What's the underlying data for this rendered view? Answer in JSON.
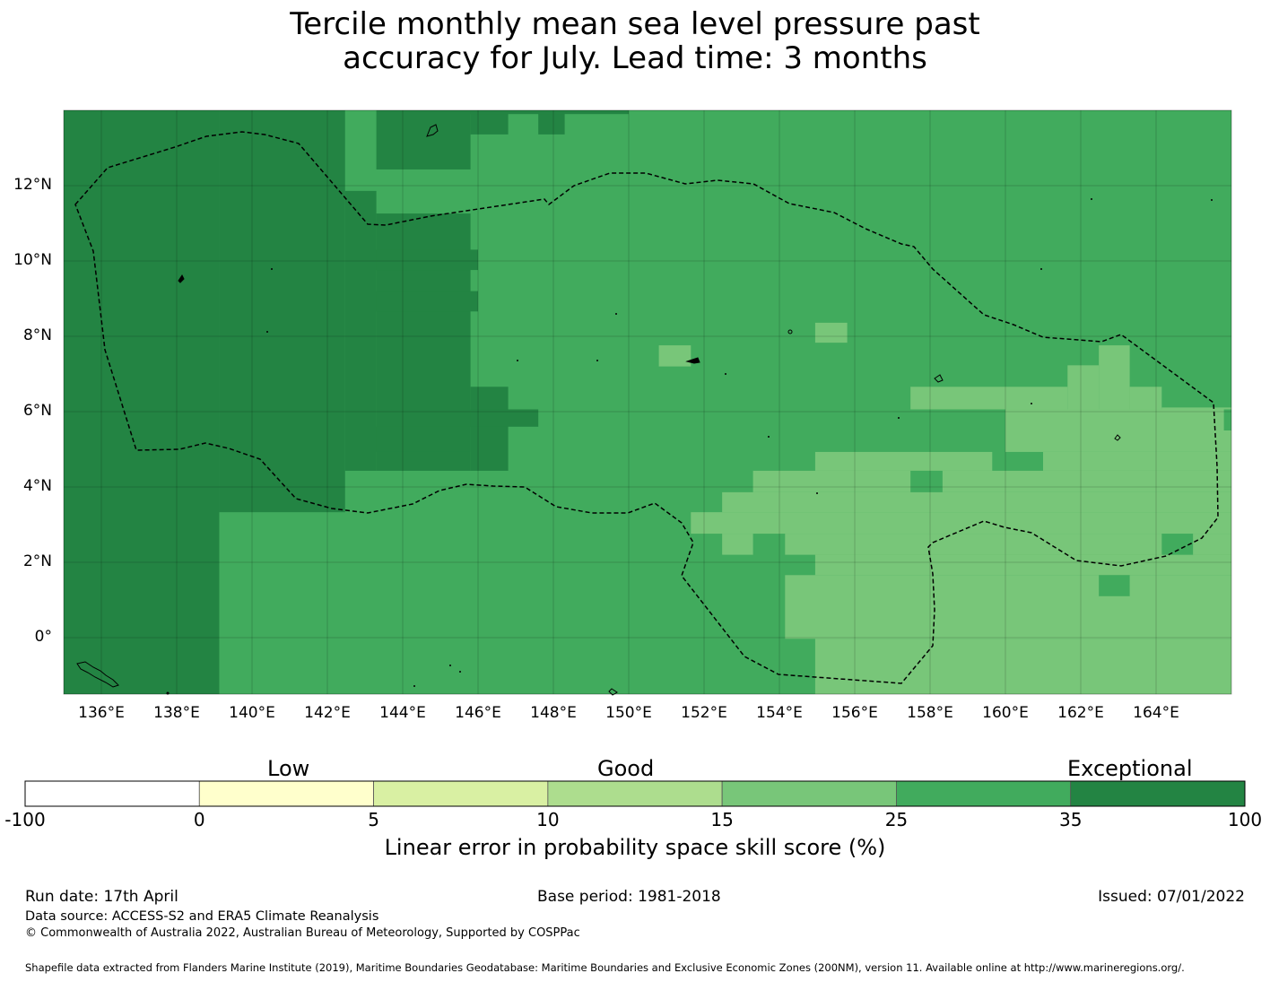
{
  "title_lines": [
    "Tercile monthly mean sea level pressure past",
    "accuracy for July. Lead time: 3 months"
  ],
  "map": {
    "lon_range": [
      135,
      166
    ],
    "lat_range": [
      -1.5,
      14
    ],
    "lat_ticks": [
      {
        "value": 12,
        "label": "12°N"
      },
      {
        "value": 10,
        "label": "10°N"
      },
      {
        "value": 8,
        "label": "8°N"
      },
      {
        "value": 6,
        "label": "6°N"
      },
      {
        "value": 4,
        "label": "4°N"
      },
      {
        "value": 2,
        "label": "2°N"
      },
      {
        "value": 0,
        "label": "0°"
      }
    ],
    "lon_ticks": [
      {
        "value": 136,
        "label": "136°E"
      },
      {
        "value": 138,
        "label": "138°E"
      },
      {
        "value": 140,
        "label": "140°E"
      },
      {
        "value": 142,
        "label": "142°E"
      },
      {
        "value": 144,
        "label": "144°E"
      },
      {
        "value": 146,
        "label": "146°E"
      },
      {
        "value": 148,
        "label": "148°E"
      },
      {
        "value": 150,
        "label": "150°E"
      },
      {
        "value": 152,
        "label": "152°E"
      },
      {
        "value": 154,
        "label": "154°E"
      },
      {
        "value": 156,
        "label": "156°E"
      },
      {
        "value": 158,
        "label": "158°E"
      },
      {
        "value": 160,
        "label": "160°E"
      },
      {
        "value": 162,
        "label": "162°E"
      },
      {
        "value": 164,
        "label": "164°E"
      }
    ],
    "score_regions": [
      {
        "class": "25-35",
        "lon": [
          135,
          166
        ],
        "lat": [
          -1.5,
          14
        ]
      },
      {
        "class": "35-100",
        "lon": [
          135,
          139.13
        ],
        "lat": [
          -1.5,
          14
        ]
      },
      {
        "class": "35-100",
        "lon": [
          139.13,
          142.47
        ],
        "lat": [
          3.33,
          14
        ]
      },
      {
        "class": "35-100",
        "lon": [
          142.47,
          143.3
        ],
        "lat": [
          4.43,
          11.86
        ]
      },
      {
        "class": "35-100",
        "lon": [
          143.3,
          145.8
        ],
        "lat": [
          4.43,
          11.26
        ]
      },
      {
        "class": "35-100",
        "lon": [
          145.8,
          146.8
        ],
        "lat": [
          4.43,
          6.66
        ]
      },
      {
        "class": "35-100",
        "lon": [
          145.8,
          147.6
        ],
        "lat": [
          5.6,
          6.06
        ]
      },
      {
        "class": "35-100",
        "lon": [
          143.3,
          145.8
        ],
        "lat": [
          4.93,
          5.6
        ]
      },
      {
        "class": "35-100",
        "lon": [
          143.3,
          146.0
        ],
        "lat": [
          9.76,
          10.3
        ]
      },
      {
        "class": "35-100",
        "lon": [
          143.3,
          146.0
        ],
        "lat": [
          8.66,
          9.2
        ]
      },
      {
        "class": "35-100",
        "lon": [
          143.3,
          145.8
        ],
        "lat": [
          12.43,
          14
        ]
      },
      {
        "class": "35-100",
        "lon": [
          145.8,
          146.8
        ],
        "lat": [
          13.36,
          14
        ]
      },
      {
        "class": "35-100",
        "lon": [
          147.6,
          148.3
        ],
        "lat": [
          13.36,
          14
        ]
      },
      {
        "class": "35-100",
        "lon": [
          145.8,
          150.0
        ],
        "lat": [
          13.9,
          14
        ]
      },
      {
        "class": "15-25",
        "lon": [
          150.8,
          151.65
        ],
        "lat": [
          7.2,
          7.76
        ]
      },
      {
        "class": "15-25",
        "lon": [
          154.95,
          155.8
        ],
        "lat": [
          7.83,
          8.36
        ]
      },
      {
        "class": "15-25",
        "lon": [
          157.48,
          161.65
        ],
        "lat": [
          6.06,
          6.66
        ]
      },
      {
        "class": "15-25",
        "lon": [
          161.65,
          162.48
        ],
        "lat": [
          6.06,
          7.23
        ]
      },
      {
        "class": "15-25",
        "lon": [
          162.48,
          163.3
        ],
        "lat": [
          6.06,
          7.76
        ]
      },
      {
        "class": "15-25",
        "lon": [
          163.3,
          164.15
        ],
        "lat": [
          6.06,
          6.66
        ]
      },
      {
        "class": "15-25",
        "lon": [
          160.0,
          166
        ],
        "lat": [
          4.93,
          6.06
        ]
      },
      {
        "class": "15-25",
        "lon": [
          164.15,
          166
        ],
        "lat": [
          6.06,
          6.11
        ]
      },
      {
        "class": "15-25",
        "lon": [
          154.95,
          159.65
        ],
        "lat": [
          4.43,
          4.93
        ]
      },
      {
        "class": "15-25",
        "lon": [
          161.0,
          166
        ],
        "lat": [
          4.43,
          4.93
        ]
      },
      {
        "class": "15-25",
        "lon": [
          153.3,
          166
        ],
        "lat": [
          3.86,
          4.43
        ]
      },
      {
        "class": "15-25",
        "lon": [
          152.48,
          166
        ],
        "lat": [
          3.33,
          3.86
        ]
      },
      {
        "class": "15-25",
        "lon": [
          151.65,
          166
        ],
        "lat": [
          2.76,
          3.33
        ]
      },
      {
        "class": "15-25",
        "lon": [
          152.48,
          153.3
        ],
        "lat": [
          2.2,
          2.76
        ]
      },
      {
        "class": "15-25",
        "lon": [
          154.15,
          166
        ],
        "lat": [
          2.2,
          2.76
        ]
      },
      {
        "class": "15-25",
        "lon": [
          154.95,
          166
        ],
        "lat": [
          1.66,
          2.2
        ]
      },
      {
        "class": "15-25",
        "lon": [
          154.15,
          166
        ],
        "lat": [
          -0.03,
          1.66
        ]
      },
      {
        "class": "15-25",
        "lon": [
          154.95,
          166
        ],
        "lat": [
          -1.5,
          -0.03
        ]
      },
      {
        "class": "25-35",
        "lon": [
          157.48,
          158.33
        ],
        "lat": [
          3.86,
          4.43
        ]
      },
      {
        "class": "25-35",
        "lon": [
          162.48,
          163.3
        ],
        "lat": [
          1.1,
          1.66
        ]
      },
      {
        "class": "25-35",
        "lon": [
          164.15,
          164.98
        ],
        "lat": [
          2.2,
          2.76
        ]
      },
      {
        "class": "25-35",
        "lon": [
          165.8,
          166
        ],
        "lat": [
          5.5,
          6.06
        ]
      }
    ]
  },
  "colorbar": {
    "category_labels": [
      "Low",
      "Good",
      "Exceptional"
    ],
    "bins": [
      {
        "from": "-100",
        "to": "0",
        "color": "#ffffff"
      },
      {
        "from": "0",
        "to": "5",
        "color": "#ffffcc"
      },
      {
        "from": "5",
        "to": "10",
        "color": "#d9f0a3"
      },
      {
        "from": "10",
        "to": "15",
        "color": "#addd8e"
      },
      {
        "from": "15",
        "to": "25",
        "color": "#78c679"
      },
      {
        "from": "25",
        "to": "35",
        "color": "#41ab5d"
      },
      {
        "from": "35",
        "to": "100",
        "color": "#238443"
      }
    ],
    "tick_labels": [
      "-100",
      "0",
      "5",
      "10",
      "15",
      "25",
      "35",
      "100"
    ],
    "label": "Linear error in probability space skill score (%)"
  },
  "footer": {
    "run_date": "Run date: 17th April",
    "base_period": "Base period: 1981-2018",
    "issued": "Issued: 07/01/2022",
    "data_source": "Data source: ACCESS-S2 and ERA5 Climate Reanalysis",
    "copyright": "© Commonwealth of Australia 2022, Australian Bureau of Meteorology, Supported by COSPPac",
    "shapefile": "Shapefile data extracted from Flanders Marine Institute (2019), Maritime Boundaries Geodatabase: Maritime Boundaries and Exclusive Economic Zones (200NM), version 11. Available online at http://www.marineregions.org/."
  }
}
